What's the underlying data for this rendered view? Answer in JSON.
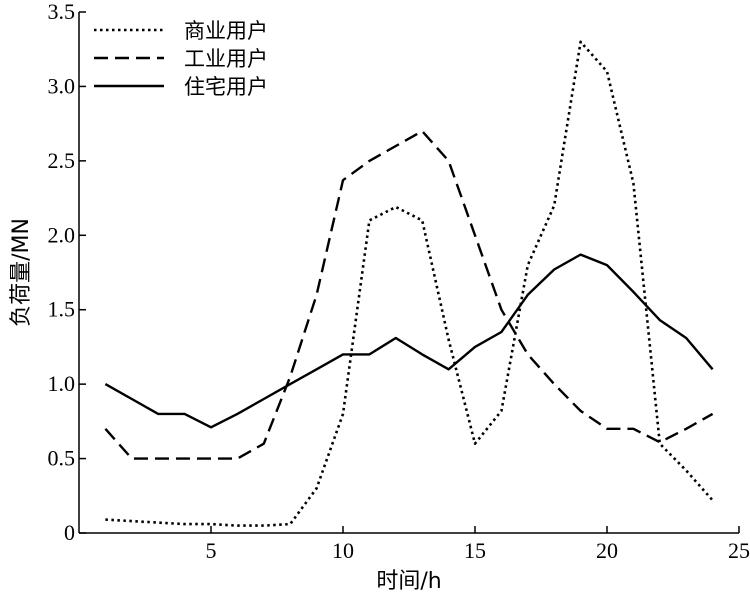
{
  "chart_data": {
    "type": "line",
    "xlabel": "时间/h",
    "ylabel": "负荷量/MN",
    "xlim": [
      0,
      25
    ],
    "ylim": [
      0,
      3.5
    ],
    "x_ticks": [
      5,
      10,
      15,
      20,
      25
    ],
    "x_tick_labels": [
      "5",
      "10",
      "15",
      "20",
      "25"
    ],
    "y_ticks": [
      0,
      0.5,
      1.0,
      1.5,
      2.0,
      2.5,
      3.0,
      3.5
    ],
    "y_tick_labels": [
      "0",
      "0.5",
      "1.0",
      "1.5",
      "2.0",
      "2.5",
      "3.0",
      "3.5"
    ],
    "grid": false,
    "legend_position": "top-left",
    "x": [
      1,
      2,
      3,
      4,
      5,
      6,
      7,
      8,
      9,
      10,
      11,
      12,
      13,
      14,
      15,
      16,
      17,
      18,
      19,
      20,
      21,
      22,
      23,
      24
    ],
    "series": [
      {
        "name": "商业用户",
        "style": "dotted",
        "color": "#000000",
        "values": [
          0.09,
          0.08,
          0.07,
          0.06,
          0.06,
          0.05,
          0.05,
          0.06,
          0.3,
          0.8,
          2.1,
          2.19,
          2.1,
          1.3,
          0.6,
          0.82,
          1.8,
          2.2,
          3.3,
          3.1,
          2.35,
          0.6,
          0.42,
          0.22
        ]
      },
      {
        "name": "工业用户",
        "style": "dashed",
        "color": "#000000",
        "values": [
          0.7,
          0.5,
          0.5,
          0.5,
          0.5,
          0.5,
          0.6,
          1.05,
          1.6,
          2.37,
          2.5,
          2.6,
          2.7,
          2.5,
          2.0,
          1.5,
          1.2,
          1.0,
          0.82,
          0.7,
          0.7,
          0.61,
          0.7,
          0.8
        ]
      },
      {
        "name": "住宅用户",
        "style": "solid",
        "color": "#000000",
        "values": [
          1.0,
          0.9,
          0.8,
          0.8,
          0.71,
          0.8,
          0.9,
          1.0,
          1.1,
          1.2,
          1.2,
          1.31,
          1.2,
          1.1,
          1.25,
          1.35,
          1.6,
          1.77,
          1.87,
          1.8,
          1.62,
          1.43,
          1.31,
          1.1
        ]
      }
    ]
  }
}
